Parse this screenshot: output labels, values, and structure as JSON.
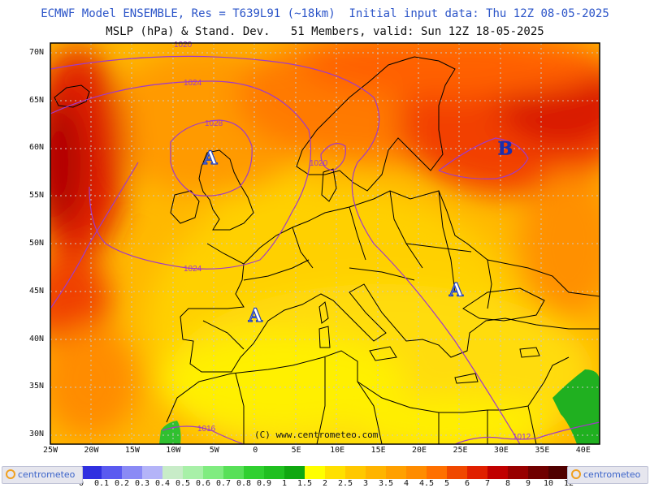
{
  "header": {
    "line1": "ECMWF Model ENSEMBLE, Res = T639L91 (~18km)  Initial input data: Thu 12Z 08-05-2025",
    "line2": "MSLP (hPa) & Stand. Dev.   51 Members, valid: Sun 12Z 18-05-2025"
  },
  "axes": {
    "lat_labels": [
      "70N",
      "65N",
      "60N",
      "55N",
      "50N",
      "45N",
      "40N",
      "35N",
      "30N"
    ],
    "lon_labels": [
      "25W",
      "20W",
      "15W",
      "10W",
      "5W",
      "0",
      "5E",
      "10E",
      "15E",
      "20E",
      "25E",
      "30E",
      "35E",
      "40E"
    ]
  },
  "map": {
    "extent": {
      "lon": [
        -25,
        42
      ],
      "lat": [
        29,
        71
      ]
    },
    "isobars": [
      "1020",
      "1024",
      "1028",
      "1024",
      "1020",
      "1016",
      "1012"
    ],
    "pressure_centers": [
      {
        "label": "A",
        "lon": -5.5,
        "lat": 59.0,
        "color": "#2040c0"
      },
      {
        "label": "A",
        "lon": 0.0,
        "lat": 42.5,
        "color": "#2040c0"
      },
      {
        "label": "A",
        "lon": 24.5,
        "lat": 45.2,
        "color": "#2040c0"
      },
      {
        "label": "B",
        "lon": 30.5,
        "lat": 60.0,
        "color": "#1a2fb0"
      }
    ],
    "copyright": "(C) www.centrometeo.com"
  },
  "legend": {
    "labels": [
      "0",
      "0.1",
      "0.2",
      "0.3",
      "0.4",
      "0.5",
      "0.6",
      "0.7",
      "0.8",
      "0.9",
      "1",
      "1.5",
      "2",
      "2.5",
      "3",
      "3.5",
      "4",
      "4.5",
      "5",
      "6",
      "7",
      "8",
      "9",
      "10",
      "12"
    ],
    "colors": [
      "#1a1ab0",
      "#3030e0",
      "#5a5af0",
      "#8a8af5",
      "#b4b4f8",
      "#c8ecc8",
      "#a8f0a8",
      "#80ec80",
      "#58e058",
      "#30d030",
      "#20c020",
      "#10a810",
      "#ffff00",
      "#ffe000",
      "#ffc800",
      "#ffb400",
      "#ffa000",
      "#ff8c00",
      "#ff7000",
      "#f04800",
      "#e02000",
      "#c00000",
      "#980000",
      "#700000",
      "#500000"
    ]
  },
  "logos": {
    "left": "centrometeo",
    "right": "centrometeo"
  }
}
